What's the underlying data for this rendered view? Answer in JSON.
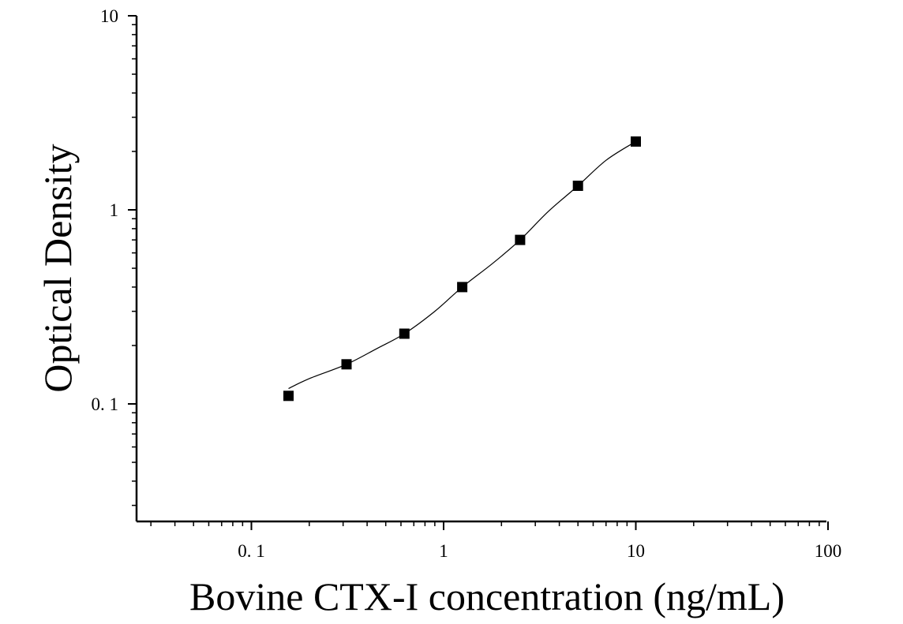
{
  "chart_data": {
    "type": "scatter",
    "title": "",
    "xlabel": "Bovine CTX-I concentration (ng/mL)",
    "ylabel": "Optical Density",
    "x_scale": "log",
    "y_scale": "log",
    "xlim": [
      0.025,
      100
    ],
    "ylim": [
      0.025,
      10
    ],
    "x_tick_labels": [
      {
        "value": 0.1,
        "label": "0. 1"
      },
      {
        "value": 1,
        "label": "1"
      },
      {
        "value": 10,
        "label": "10"
      },
      {
        "value": 100,
        "label": "100"
      }
    ],
    "y_tick_labels": [
      {
        "value": 0.1,
        "label": "0. 1"
      },
      {
        "value": 1,
        "label": "1"
      },
      {
        "value": 10,
        "label": "10"
      }
    ],
    "grid": false,
    "legend": "none",
    "marker": "square",
    "colors": {
      "marker": "#000000",
      "curve": "#000000",
      "axis": "#000000"
    },
    "series": [
      {
        "x": [
          0.156,
          0.3125,
          0.625,
          1.25,
          2.5,
          5,
          10
        ],
        "y": [
          0.11,
          0.16,
          0.23,
          0.4,
          0.7,
          1.33,
          2.25
        ]
      }
    ],
    "fit_curve": {
      "x": [
        0.156,
        0.2,
        0.3125,
        0.45,
        0.625,
        0.9,
        1.25,
        1.8,
        2.5,
        3.5,
        5,
        7,
        10
      ],
      "y": [
        0.12,
        0.135,
        0.16,
        0.193,
        0.23,
        0.3,
        0.4,
        0.53,
        0.7,
        0.98,
        1.33,
        1.8,
        2.25
      ]
    }
  }
}
